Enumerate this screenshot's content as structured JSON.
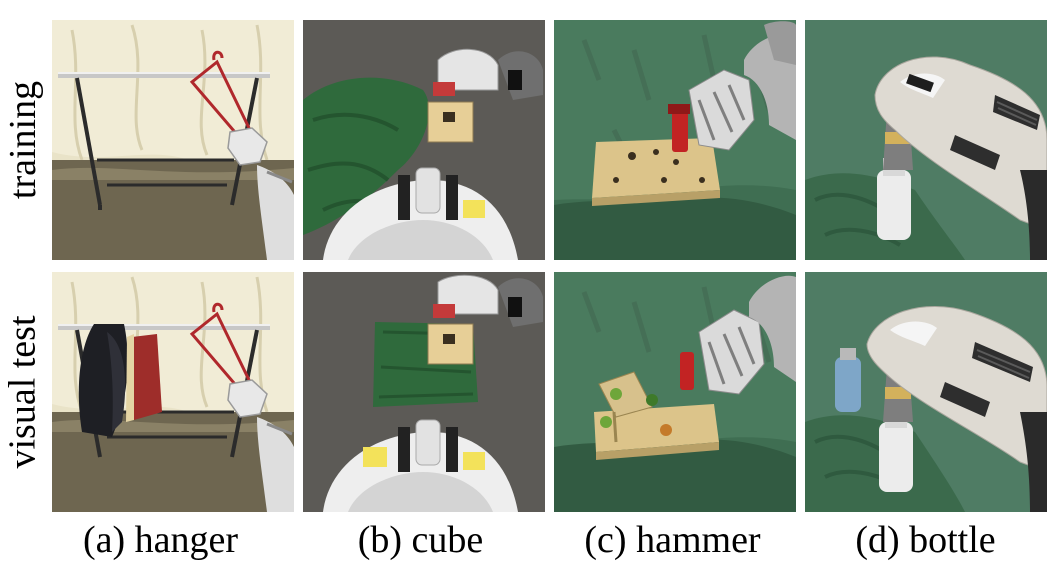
{
  "rows": [
    {
      "label": "training"
    },
    {
      "label": "visual test"
    }
  ],
  "columns": [
    {
      "caption": "(a) hanger"
    },
    {
      "caption": "(b) cube"
    },
    {
      "caption": "(c) hammer"
    },
    {
      "caption": "(d) bottle"
    }
  ]
}
